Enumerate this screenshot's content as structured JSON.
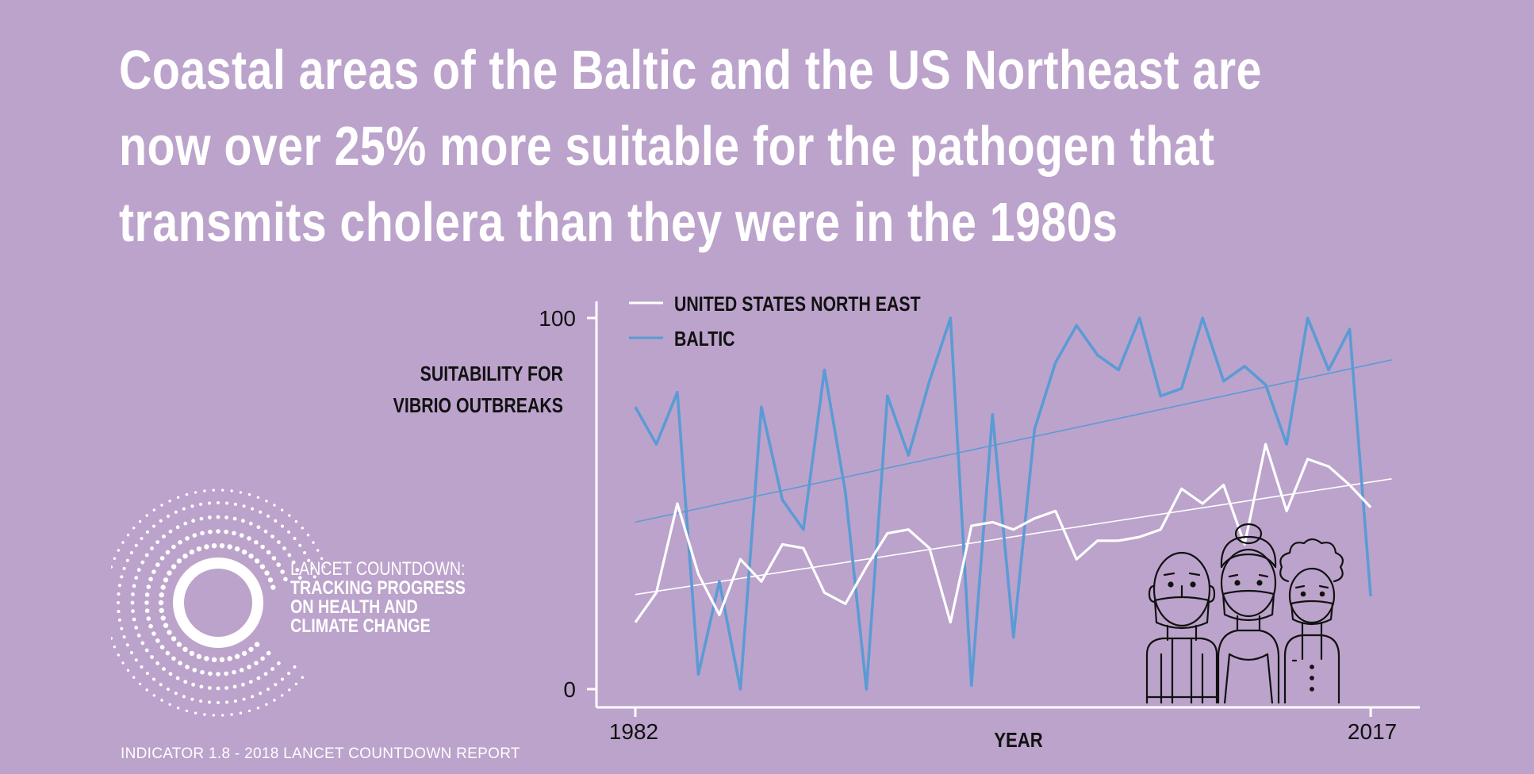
{
  "headline": {
    "line1": "Coastal areas of the Baltic and the US Northeast are",
    "line2": "now over 25% more suitable for the pathogen that",
    "line3": "transmits cholera than they were in the 1980s"
  },
  "logo": {
    "line1": "LANCET COUNTDOWN:",
    "line2": "TRACKING PROGRESS",
    "line3": "ON HEALTH AND",
    "line4": "CLIMATE CHANGE"
  },
  "footer": "INDICATOR 1.8 - 2018 LANCET COUNTDOWN REPORT",
  "colors": {
    "background": "#bca3cb",
    "us_line": "#ffffff",
    "baltic_line": "#5b9bd5",
    "axis": "#ffffff",
    "text": "#ffffff",
    "dark_text": "#111111"
  },
  "chart_data": {
    "type": "line",
    "ylabel_line1": "SUITABILITY FOR",
    "ylabel_line2": "VIBRIO OUTBREAKS",
    "xlabel": "YEAR",
    "xtick_labels": [
      "1982",
      "2017"
    ],
    "ytick_labels": [
      "0",
      "100"
    ],
    "xlim": [
      1982,
      2019.3
    ],
    "ylim": [
      0,
      100
    ],
    "grid": false,
    "legend_position": "top-left",
    "x": [
      1982,
      1983,
      1984,
      1985,
      1986,
      1987,
      1988,
      1989,
      1990,
      1991,
      1992,
      1993,
      1994,
      1995,
      1996,
      1997,
      1998,
      1999,
      2000,
      2001,
      2002,
      2003,
      2004,
      2005,
      2006,
      2007,
      2008,
      2009,
      2010,
      2011,
      2012,
      2013,
      2014,
      2015,
      2016,
      2017
    ],
    "series": [
      {
        "name": "UNITED STATES NORTH EAST",
        "color": "#ffffff",
        "values": [
          18,
          26,
          50,
          31,
          20,
          35,
          29,
          39,
          38,
          26,
          23,
          33,
          42,
          43,
          38,
          18,
          44,
          45,
          43,
          46,
          48,
          35,
          40,
          40,
          41,
          43,
          54,
          50,
          55,
          39,
          66,
          48,
          62,
          60,
          55,
          49
        ],
        "trend": [
          25.5,
          55.8
        ]
      },
      {
        "name": "BALTIC",
        "color": "#5b9bd5",
        "values": [
          76,
          66,
          80,
          4,
          29,
          0,
          76,
          51,
          43,
          86,
          53,
          0,
          79,
          63,
          83,
          100,
          1,
          74,
          14,
          70,
          88,
          98,
          90,
          86,
          100,
          79,
          81,
          100,
          83,
          87,
          82,
          66,
          100,
          86,
          97,
          25
        ],
        "trend": [
          45,
          87.5
        ]
      }
    ]
  }
}
